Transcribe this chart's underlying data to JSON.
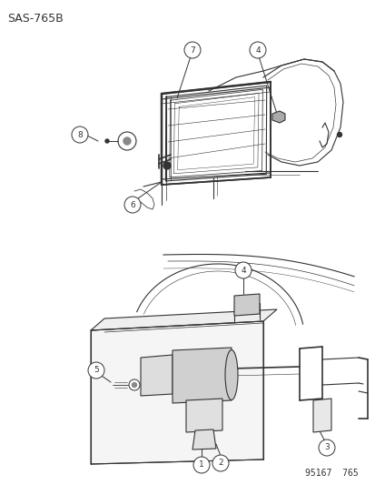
{
  "title_code": "SAS-765B",
  "footer_code": "95167  765",
  "bg_color": "#ffffff",
  "title_fontsize": 9,
  "footer_fontsize": 7,
  "line_color": "#333333",
  "label_fontsize": 6.5
}
